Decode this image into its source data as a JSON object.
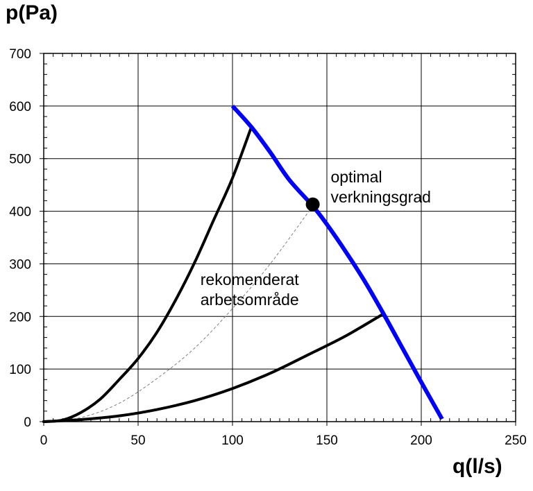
{
  "chart_data": {
    "type": "line",
    "title": "",
    "xlabel": "q(l/s)",
    "ylabel": "p(Pa)",
    "xlim": [
      0,
      250
    ],
    "ylim": [
      0,
      700
    ],
    "xticks": [
      0,
      50,
      100,
      150,
      200,
      250
    ],
    "yticks": [
      0,
      100,
      200,
      300,
      400,
      500,
      600,
      700
    ],
    "x_minor_step": 5,
    "y_minor_step": 20,
    "grid": true,
    "colors": {
      "fan_curve": "#0000ff",
      "system_curve": "#000000",
      "optimal_curve": "#808080",
      "grid": "#000000"
    },
    "fan_curve": {
      "x": [
        100,
        110,
        120,
        130,
        142.5,
        150,
        160,
        170,
        180,
        190,
        200,
        211
      ],
      "y": [
        600,
        560,
        512,
        460,
        410,
        375,
        323,
        267,
        205,
        140,
        75,
        5
      ]
    },
    "system_curves": [
      {
        "x": [
          0,
          10,
          20,
          30,
          40,
          50,
          60,
          70,
          80,
          90,
          100,
          110
        ],
        "y": [
          0,
          3,
          18,
          43,
          80,
          120,
          170,
          232,
          303,
          383,
          463,
          560
        ]
      },
      {
        "x": [
          0,
          20,
          40,
          60,
          80,
          100,
          120,
          140,
          160,
          180
        ],
        "y": [
          0,
          4,
          11,
          23,
          40,
          63,
          92,
          127,
          163,
          205
        ]
      },
      {
        "x": [
          0,
          20,
          40,
          60,
          80,
          100,
          120,
          142.5
        ],
        "y": [
          0,
          8,
          35,
          82,
          140,
          215,
          300,
          410
        ]
      }
    ],
    "optimal_point": {
      "x": 142.5,
      "y": 413
    },
    "annotations": [
      {
        "lines": [
          "optimal",
          "verkningsgrad"
        ],
        "x": 152,
        "y": 455
      },
      {
        "lines": [
          "rekomenderat",
          "arbetsområde"
        ],
        "x": 83,
        "y": 260
      }
    ]
  }
}
